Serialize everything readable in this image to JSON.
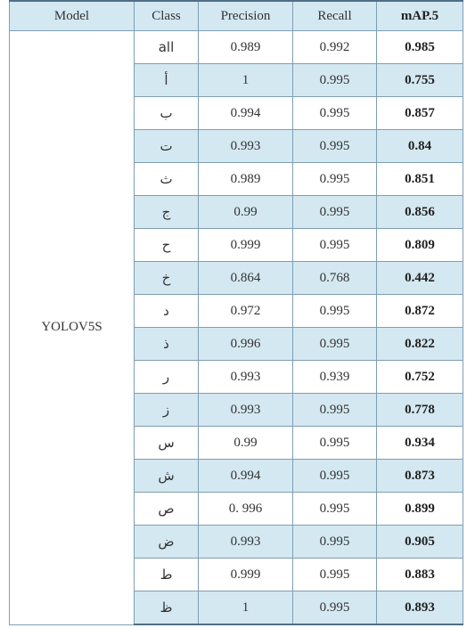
{
  "table": {
    "headers": {
      "model": "Model",
      "class": "Class",
      "precision": "Precision",
      "recall": "Recall",
      "map": "mAP.5"
    },
    "model_name": "YOLOV5S",
    "rows": [
      {
        "class": "all",
        "precision": "0.989",
        "recall": "0.992",
        "map": "0.985"
      },
      {
        "class": "أ",
        "precision": "1",
        "recall": "0.995",
        "map": "0.755"
      },
      {
        "class": "ب",
        "precision": "0.994",
        "recall": "0.995",
        "map": "0.857"
      },
      {
        "class": "ت",
        "precision": "0.993",
        "recall": "0.995",
        "map": "0.84"
      },
      {
        "class": "ث",
        "precision": "0.989",
        "recall": "0.995",
        "map": "0.851"
      },
      {
        "class": "ج",
        "precision": "0.99",
        "recall": "0.995",
        "map": "0.856"
      },
      {
        "class": "ح",
        "precision": "0.999",
        "recall": "0.995",
        "map": "0.809"
      },
      {
        "class": "خ",
        "precision": "0.864",
        "recall": "0.768",
        "map": "0.442"
      },
      {
        "class": "د",
        "precision": "0.972",
        "recall": "0.995",
        "map": "0.872"
      },
      {
        "class": "ذ",
        "precision": "0.996",
        "recall": "0.995",
        "map": "0.822"
      },
      {
        "class": "ر",
        "precision": "0.993",
        "recall": "0.939",
        "map": "0.752"
      },
      {
        "class": "ز",
        "precision": "0.993",
        "recall": "0.995",
        "map": "0.778"
      },
      {
        "class": "س",
        "precision": "0.99",
        "recall": "0.995",
        "map": "0.934"
      },
      {
        "class": "ش",
        "precision": "0.994",
        "recall": "0.995",
        "map": "0.873"
      },
      {
        "class": "ص",
        "precision": "0. 996",
        "recall": "0.995",
        "map": "0.899"
      },
      {
        "class": "ض",
        "precision": "0.993",
        "recall": "0.995",
        "map": "0.905"
      },
      {
        "class": "ط",
        "precision": "0.999",
        "recall": "0.995",
        "map": "0.883"
      },
      {
        "class": "ظ",
        "precision": "1",
        "recall": "0.995",
        "map": "0.893"
      }
    ]
  },
  "colors": {
    "header_fill": "#d4e8f1",
    "stripe_fill": "#d4e8f1",
    "border": "#7f9eb3",
    "rule": "#4f6f86"
  }
}
